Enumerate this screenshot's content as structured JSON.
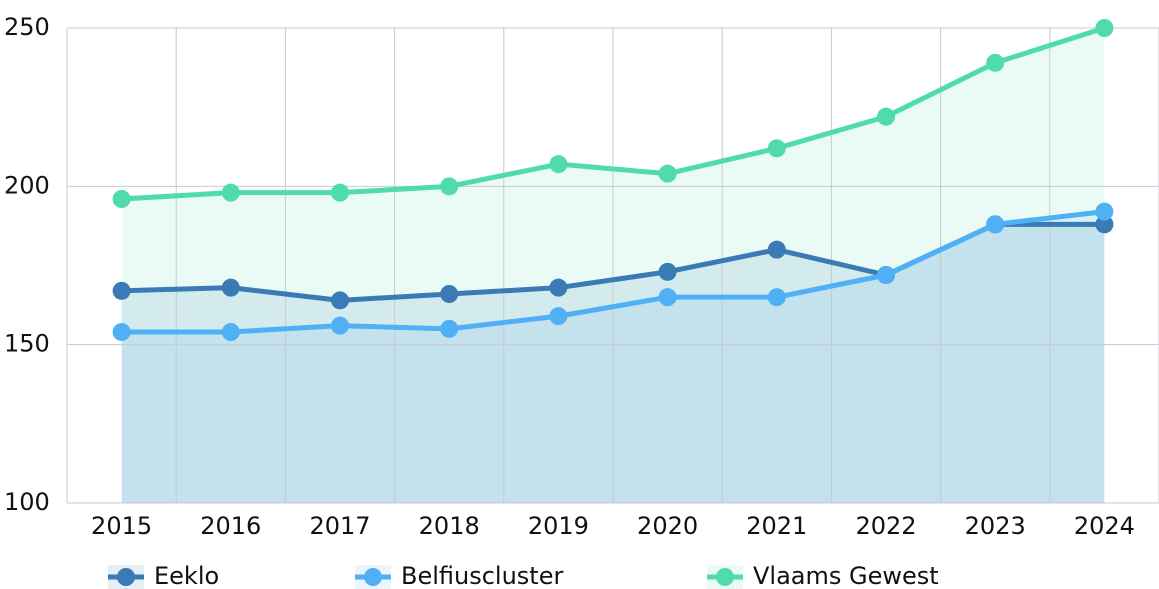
{
  "chart_data": {
    "type": "line",
    "categories": [
      "2015",
      "2016",
      "2017",
      "2018",
      "2019",
      "2020",
      "2021",
      "2022",
      "2023",
      "2024"
    ],
    "series": [
      {
        "name": "Eeklo",
        "color": "#3a7ab5",
        "values": [
          167,
          168,
          164,
          166,
          168,
          173,
          180,
          172,
          188,
          188
        ]
      },
      {
        "name": "Belfiuscluster",
        "color": "#4fb0f5",
        "values": [
          154,
          154,
          156,
          155,
          159,
          165,
          165,
          172,
          188,
          192
        ]
      },
      {
        "name": "Vlaams Gewest",
        "color": "#50dcaa",
        "values": [
          196,
          198,
          198,
          200,
          207,
          204,
          212,
          222,
          239,
          250
        ]
      }
    ],
    "ylim": [
      100,
      250
    ],
    "yticks": [
      100,
      150,
      200,
      250
    ],
    "grid": true,
    "area": true,
    "legend": "bottom"
  }
}
